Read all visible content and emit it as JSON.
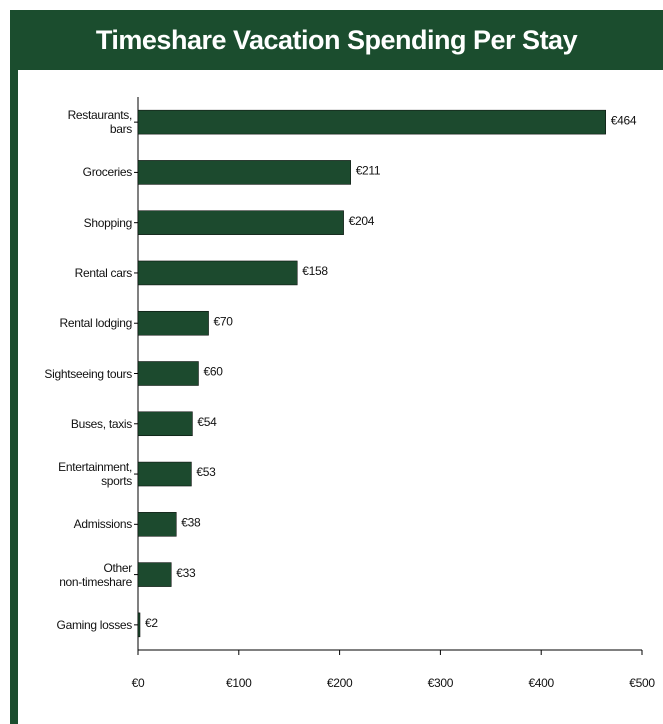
{
  "chart_data": {
    "type": "bar",
    "orientation": "horizontal",
    "title": "Timeshare Vacation Spending Per Stay",
    "categories": [
      "Restaurants,\nbars",
      "Groceries",
      "Shopping",
      "Rental cars",
      "Rental lodging",
      "Sightseeing tours",
      "Buses, taxis",
      "Entertainment,\nsports",
      "Admissions",
      "Other\nnon-timeshare",
      "Gaming losses"
    ],
    "values": [
      464,
      211,
      204,
      158,
      70,
      60,
      54,
      53,
      38,
      33,
      2
    ],
    "value_labels": [
      "€464",
      "€211",
      "€204",
      "€158",
      "€70",
      "€60",
      "€54",
      "€53",
      "€38",
      "€33",
      "€2"
    ],
    "color": "#1c4a2e",
    "xlim": [
      0,
      500
    ],
    "xticks": [
      {
        "value": 0,
        "label": "€0"
      },
      {
        "value": 100,
        "label": "€100"
      },
      {
        "value": 200,
        "label": "€200"
      },
      {
        "value": 300,
        "label": "€300"
      },
      {
        "value": 400,
        "label": "€400"
      },
      {
        "value": 500,
        "label": "€500"
      }
    ],
    "grid": false
  }
}
